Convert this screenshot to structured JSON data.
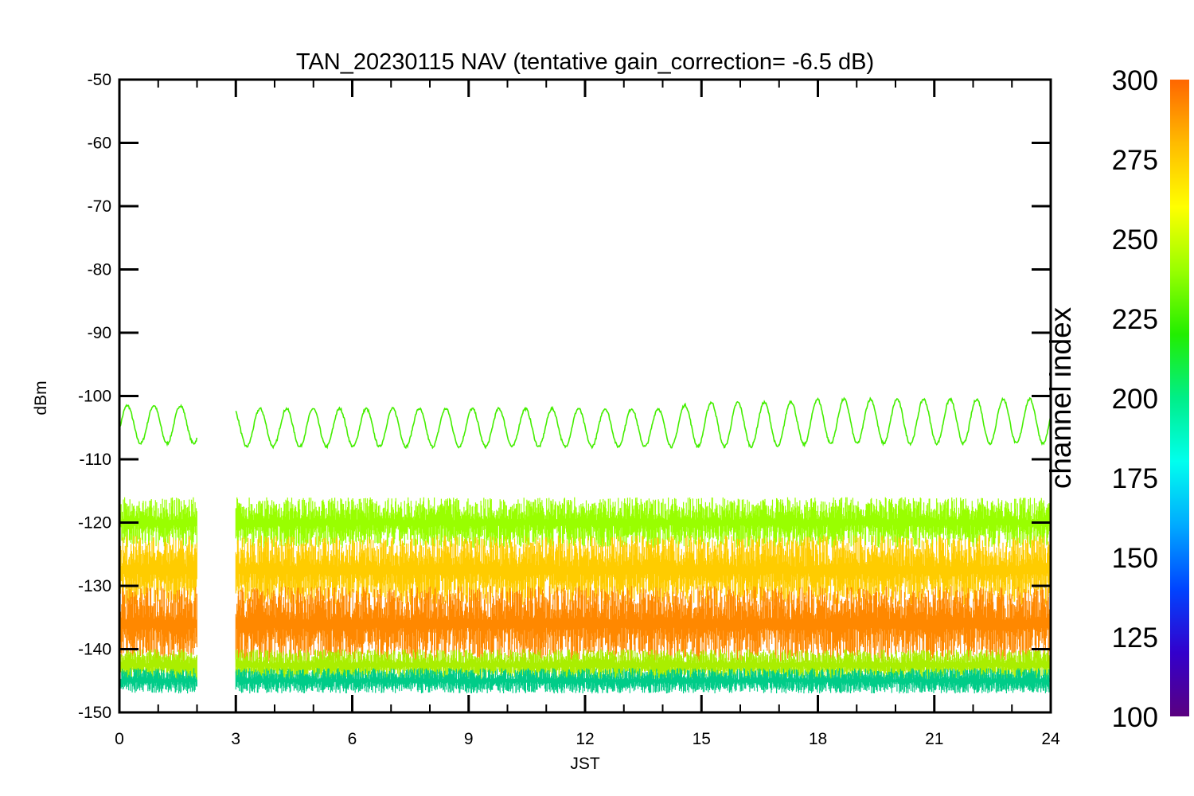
{
  "chart_data": {
    "type": "line",
    "title": "TAN_20230115 NAV (tentative gain_correction= -6.5 dB)",
    "xlabel": "JST",
    "ylabel": "dBm",
    "xlim": [
      0,
      24
    ],
    "ylim": [
      -150,
      -50
    ],
    "xticks": [
      0,
      3,
      6,
      9,
      12,
      15,
      18,
      21,
      24
    ],
    "yticks": [
      -50,
      -60,
      -70,
      -80,
      -90,
      -100,
      -110,
      -120,
      -130,
      -140,
      -150
    ],
    "data_gap": [
      2.0,
      3.0
    ],
    "series": [
      {
        "color": "#44ee00",
        "x": [
          0,
          0.5,
          1,
          1.5,
          2,
          3,
          4,
          5,
          6,
          7,
          8,
          9,
          10,
          11,
          12,
          13,
          14,
          15,
          16,
          17,
          18,
          19,
          20,
          21,
          22,
          23,
          24
        ],
        "y_mean": [
          -104.5,
          -104.5,
          -104.5,
          -104.5,
          -104.5,
          -105,
          -105,
          -105,
          -105,
          -105,
          -105,
          -105,
          -105,
          -105,
          -105,
          -105,
          -105,
          -104.5,
          -104.5,
          -104.5,
          -104,
          -104,
          -104,
          -104,
          -104,
          -104,
          -104
        ],
        "oscillation_period_hours": 0.684,
        "oscillation_amplitude_db": [
          3.0,
          3.0,
          3.0,
          3.0,
          3.0,
          3.0,
          3.0,
          3.0,
          3.0,
          3.0,
          3.0,
          3.0,
          3.0,
          3.0,
          3.0,
          3.0,
          3.0,
          3.5,
          3.5,
          3.5,
          3.5,
          3.5,
          3.5,
          3.5,
          3.5,
          3.5,
          3.5
        ]
      },
      {
        "color": "#99ff00",
        "x": [
          0,
          24
        ],
        "y_range": [
          -124,
          -116
        ]
      },
      {
        "color": "#ffcc00",
        "x": [
          0,
          24
        ],
        "y_range": [
          -133,
          -122
        ]
      },
      {
        "color": "#ff8800",
        "x": [
          0,
          24
        ],
        "y_range": [
          -142,
          -130
        ]
      },
      {
        "color": "#aaee00",
        "x": [
          0,
          24
        ],
        "y_range": [
          -145,
          -140
        ]
      },
      {
        "color": "#00cc88",
        "x": [
          0,
          24
        ],
        "y_range": [
          -147,
          -143
        ]
      }
    ],
    "colorbar": {
      "label": "channel index",
      "range": [
        100,
        300
      ],
      "ticks": [
        "300",
        "275",
        "250",
        "225",
        "200",
        "175",
        "150",
        "125",
        "100"
      ],
      "colors": [
        "#5a0080",
        "#3300cc",
        "#0044ff",
        "#00aaff",
        "#00ffee",
        "#00ee88",
        "#22ee00",
        "#99ff00",
        "#ffff00",
        "#ffbb00",
        "#ff6600"
      ]
    }
  }
}
